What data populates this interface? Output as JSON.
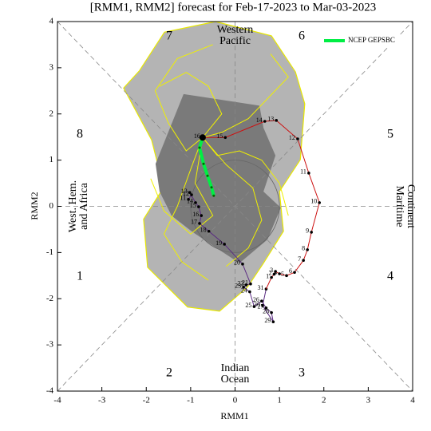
{
  "chart_data": {
    "type": "phase",
    "title": "[RMM1, RMM2] forecast for Feb-17-2023 to Mar-03-2023",
    "x_label": "RMM1",
    "y_label": "RMM2",
    "xlim": [
      -4,
      4
    ],
    "ylim": [
      -4,
      4
    ],
    "xticks": [
      -4,
      -3,
      -2,
      -1,
      0,
      1,
      2,
      3,
      4
    ],
    "yticks": [
      -4,
      -3,
      -2,
      -1,
      0,
      1,
      2,
      3,
      4
    ],
    "phases": [
      "1",
      "2",
      "3",
      "4",
      "5",
      "6",
      "7",
      "8"
    ],
    "regions": {
      "top": [
        "Western",
        "Pacific"
      ],
      "right": [
        "Maritime",
        "Continent"
      ],
      "bottom": [
        "Indian",
        "Ocean"
      ],
      "left": [
        "West. Hem.",
        "and Africa"
      ]
    },
    "shading": [
      {
        "color": "#b4b4b4",
        "x": [
          -2.15,
          -1.59,
          -0.44,
          0.82,
          1.36,
          1.57,
          1.47,
          1.0,
          1.09,
          0.64,
          0.28,
          -0.35,
          -1.07,
          -1.97,
          -2.06,
          -1.61,
          -1.88,
          -2.51
        ],
        "y": [
          2.94,
          3.77,
          4.0,
          3.69,
          2.91,
          2.22,
          1.01,
          0.32,
          -0.54,
          -1.23,
          -1.75,
          -2.27,
          -2.18,
          -1.32,
          -0.28,
          0.41,
          1.44,
          2.56
        ]
      },
      {
        "color": "#7a7a7a",
        "x": [
          -1.79,
          -1.16,
          0.55,
          0.64,
          0.91,
          0.64,
          1.03,
          0.73,
          0.1,
          -0.44,
          -0.98,
          -1.43,
          -1.7
        ],
        "y": [
          0.92,
          2.43,
          2.18,
          1.7,
          1.1,
          0.32,
          -0.03,
          -0.72,
          -1.23,
          -0.89,
          -0.54,
          -0.2,
          0.32
        ]
      }
    ],
    "members": [
      {
        "color": "#f0f000",
        "x": [
          -0.73,
          -0.3,
          0.3,
          0.7,
          1.2,
          0.8
        ],
        "y": [
          1.49,
          1.6,
          1.9,
          2.3,
          2.8,
          3.3
        ]
      },
      {
        "color": "#f0f000",
        "x": [
          -0.73,
          -1.0,
          -1.3,
          -1.6,
          -1.2,
          -0.6
        ],
        "y": [
          1.49,
          0.8,
          0.0,
          -0.6,
          -1.2,
          -1.6
        ]
      },
      {
        "color": "#f0f000",
        "x": [
          -0.73,
          -0.2,
          0.4,
          0.6,
          0.3,
          -0.2
        ],
        "y": [
          1.49,
          0.9,
          0.4,
          -0.3,
          -0.9,
          -1.3
        ]
      },
      {
        "color": "#f0f000",
        "x": [
          -0.73,
          -1.1,
          -1.5,
          -1.8,
          -1.3,
          -0.5
        ],
        "y": [
          1.49,
          1.2,
          1.8,
          2.5,
          3.2,
          3.5
        ]
      },
      {
        "color": "#f0f000",
        "x": [
          -0.73,
          -0.4,
          0.1,
          0.6,
          1.0,
          1.2
        ],
        "y": [
          1.49,
          1.1,
          1.2,
          1.0,
          0.5,
          -0.2
        ]
      },
      {
        "color": "#f0f000",
        "x": [
          -0.73,
          -0.9,
          -0.5,
          -1.0,
          -1.6,
          -1.9
        ],
        "y": [
          1.49,
          0.5,
          -0.2,
          -0.6,
          -0.1,
          0.6
        ]
      },
      {
        "color": "#f0f000",
        "x": [
          -0.73,
          -0.3,
          -0.6,
          -1.1,
          -1.7
        ],
        "y": [
          1.49,
          2.0,
          2.6,
          2.9,
          2.6
        ]
      }
    ],
    "series": [
      {
        "name": "NCEP GEPSBC",
        "color": "#00ee44",
        "x": [
          -0.73,
          -0.8,
          -0.71,
          -0.62,
          -0.53,
          -0.48
        ],
        "y": [
          1.49,
          1.27,
          0.92,
          0.66,
          0.41,
          0.23
        ]
      }
    ],
    "observed": [
      {
        "color": "#5a2a82",
        "labels": [
          "11",
          "12",
          "13",
          "14",
          "15",
          "16",
          "17",
          "18",
          "19",
          "20",
          "21",
          "22",
          "23",
          "24",
          "25",
          "26",
          "27",
          "28",
          "29",
          "30",
          "31"
        ],
        "x": [
          -1.05,
          -0.98,
          -1.02,
          -0.89,
          -0.82,
          -0.76,
          -0.8,
          -0.59,
          -0.24,
          0.17,
          0.35,
          0.25,
          0.19,
          0.33,
          0.43,
          0.6,
          0.7,
          0.82,
          0.86,
          0.62,
          0.7
        ],
        "y": [
          0.15,
          0.25,
          0.3,
          0.08,
          -0.01,
          -0.2,
          -0.37,
          -0.54,
          -0.82,
          -1.25,
          -1.68,
          -1.7,
          -1.75,
          -1.85,
          -2.17,
          -2.05,
          -2.2,
          -2.3,
          -2.5,
          -2.15,
          -1.79
        ]
      },
      {
        "color": "#cc1111",
        "labels": [
          "1",
          "2",
          "3",
          "4",
          "5",
          "6",
          "7",
          "8",
          "9",
          "10",
          "11",
          "12",
          "13",
          "14",
          "15",
          "16"
        ],
        "x": [
          0.82,
          0.88,
          0.91,
          1.0,
          1.16,
          1.34,
          1.54,
          1.63,
          1.72,
          1.9,
          1.66,
          1.41,
          0.93,
          0.67,
          -0.22,
          -0.73
        ],
        "y": [
          -1.54,
          -1.47,
          -1.41,
          -1.46,
          -1.5,
          -1.43,
          -1.17,
          -0.94,
          -0.56,
          0.08,
          0.72,
          1.46,
          1.86,
          1.84,
          1.49,
          1.49
        ]
      }
    ]
  }
}
